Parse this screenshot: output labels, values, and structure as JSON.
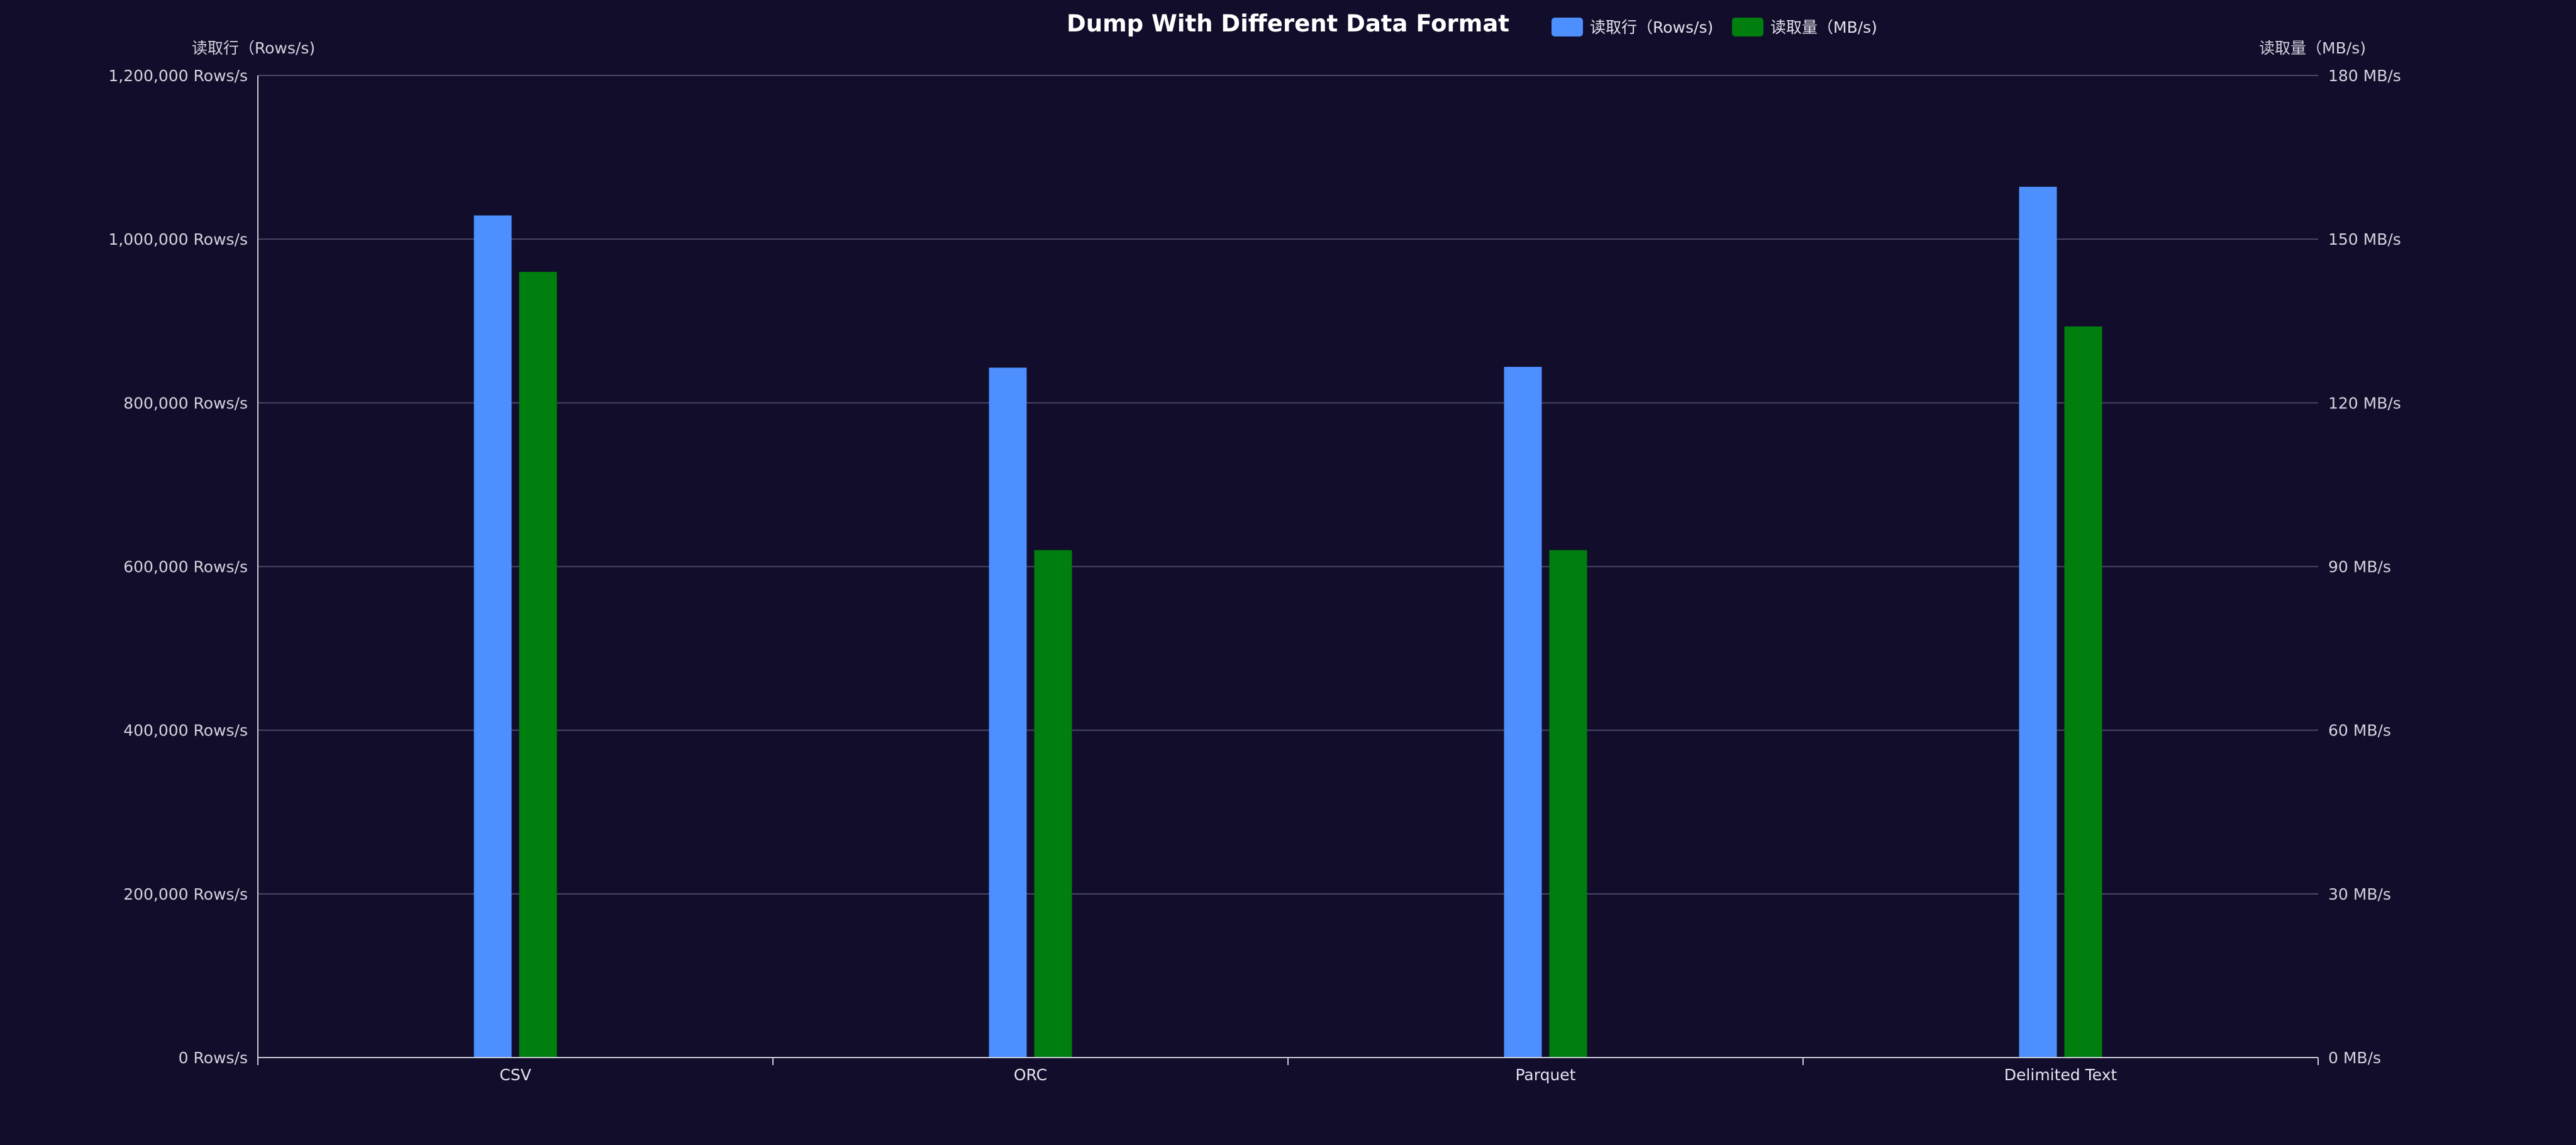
{
  "chart_data": {
    "type": "bar",
    "title": "Dump With Different Data Format",
    "categories": [
      "CSV",
      "ORC",
      "Parquet",
      "Delimited Text"
    ],
    "series": [
      {
        "name": "读取行（Rows/s)",
        "axis": "left",
        "color": "#4d8ffe",
        "values": [
          1029000,
          843000,
          844000,
          1064000
        ]
      },
      {
        "name": "读取量（MB/s)",
        "axis": "right",
        "color": "#007f0e",
        "values": [
          144,
          93,
          93,
          134
        ]
      }
    ],
    "y_left": {
      "label": "读取行（Rows/s)",
      "ylim": [
        0,
        1200000
      ],
      "ticks": [
        0,
        200000,
        400000,
        600000,
        800000,
        1000000,
        1200000
      ],
      "tick_labels": [
        "0 Rows/s",
        "200,000 Rows/s",
        "400,000 Rows/s",
        "600,000 Rows/s",
        "800,000 Rows/s",
        "1,000,000 Rows/s",
        "1,200,000 Rows/s"
      ]
    },
    "y_right": {
      "label": "读取量（MB/s)",
      "ylim": [
        0,
        180
      ],
      "ticks": [
        0,
        30,
        60,
        90,
        120,
        150,
        180
      ],
      "tick_labels": [
        "0 MB/s",
        "30 MB/s",
        "60 MB/s",
        "90 MB/s",
        "120 MB/s",
        "150 MB/s",
        "180 MB/s"
      ]
    },
    "grid": true,
    "legend_position": "top-center"
  }
}
